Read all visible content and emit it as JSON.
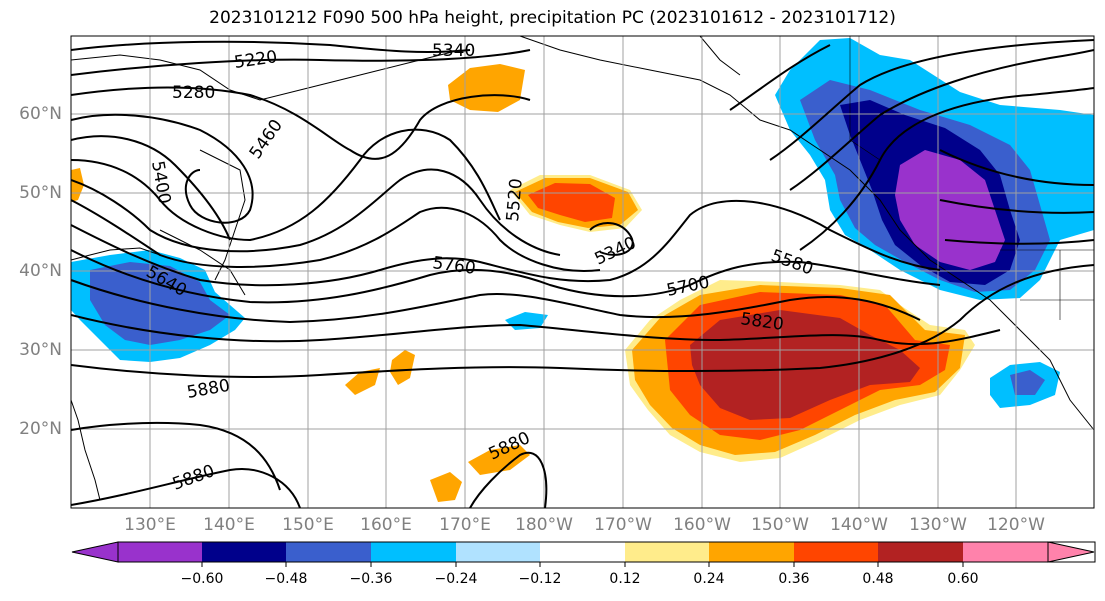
{
  "title": "2023101212 F090 500 hPa height, precipitation PC (2023101612 - 2023101712)",
  "lat_labels": [
    "60°N",
    "50°N",
    "40°N",
    "30°N",
    "20°N"
  ],
  "lon_labels": [
    "130°E",
    "140°E",
    "150°E",
    "160°E",
    "170°E",
    "180°W",
    "170°W",
    "160°W",
    "150°W",
    "140°W",
    "130°W",
    "120°W"
  ],
  "contour_labels": [
    "5220",
    "5340",
    "5280",
    "5460",
    "5400",
    "5520",
    "5340",
    "5640",
    "5760",
    "5700",
    "5580",
    "5820",
    "5880",
    "5880",
    "5880"
  ],
  "colorbar": {
    "tick_labels": [
      "−0.60",
      "−0.48",
      "−0.36",
      "−0.24",
      "−0.12",
      "0.12",
      "0.24",
      "0.36",
      "0.48",
      "0.60"
    ],
    "colors": [
      "#9932CC",
      "#00008B",
      "#3A5FCD",
      "#00BFFF",
      "#B0E2FF",
      "#FFFFFF",
      "#FFEC8B",
      "#FFA500",
      "#FF4500",
      "#B22222",
      "#FF82AB"
    ]
  },
  "colors": {
    "border": "#000000",
    "grid": "#a0a0a0",
    "contour": "#000000"
  }
}
